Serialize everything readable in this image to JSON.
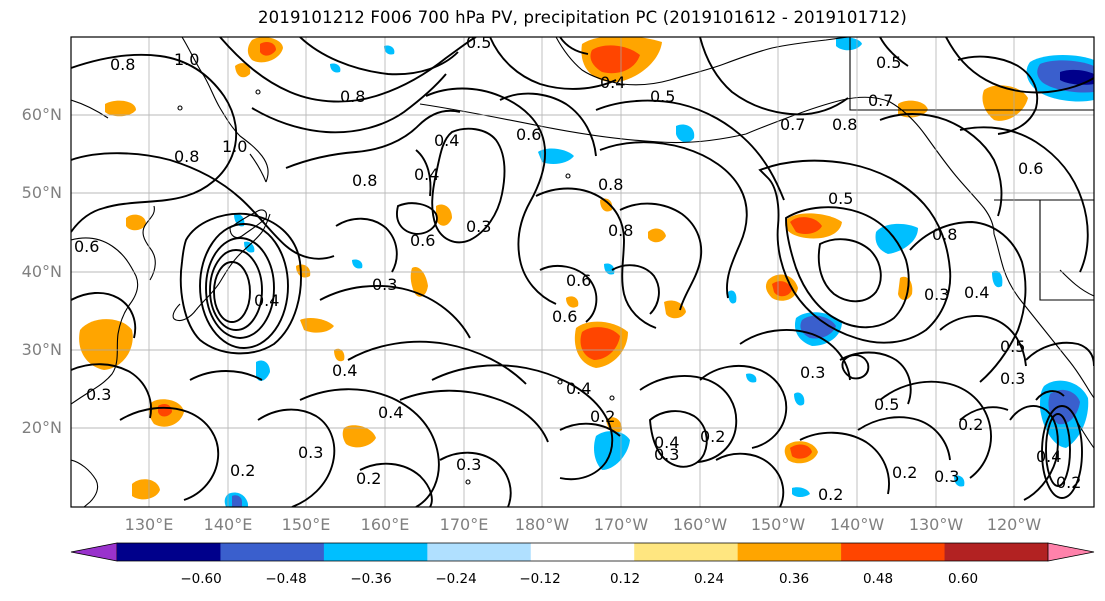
{
  "title": "2019101212 F006 700 hPa PV, precipitation PC (2019101612 - 2019101712)",
  "lat_labels": [
    "60°N",
    "50°N",
    "40°N",
    "30°N",
    "20°N"
  ],
  "lon_labels": [
    "130°E",
    "140°E",
    "150°E",
    "160°E",
    "170°E",
    "180°W",
    "170°W",
    "160°W",
    "150°W",
    "140°W",
    "130°W",
    "120°W"
  ],
  "colorbar": {
    "tick_labels": [
      "−0.60",
      "−0.48",
      "−0.36",
      "−0.24",
      "−0.12",
      "0.12",
      "0.24",
      "0.36",
      "0.48",
      "0.60"
    ],
    "colors": [
      "#9932cc",
      "#00008b",
      "#3a5fcd",
      "#00bfff",
      "#b0e0ff",
      "#ffffff",
      "#ffe680",
      "#ffa500",
      "#ff4500",
      "#b22222",
      "#ff82ab"
    ]
  },
  "contour_labels": [
    "0.8",
    "1.0",
    "0.5",
    "0.8",
    "0.4",
    "0.5",
    "0.6",
    "0.8",
    "0.8",
    "0.5",
    "0.7",
    "0.7",
    "1.0",
    "0.8",
    "0.4",
    "0.6",
    "0.8",
    "0.3",
    "0.6",
    "0.4",
    "0.8",
    "0.5",
    "0.8",
    "0.6",
    "0.3",
    "0.6",
    "0.6",
    "0.4",
    "0.4",
    "0.3",
    "0.5",
    "0.4",
    "0.2",
    "0.3",
    "0.4",
    "0.5",
    "0.2",
    "0.3",
    "0.4",
    "0.3",
    "0.2",
    "0.3",
    "0.2",
    "0.2",
    "0.2",
    "0.3",
    "0.2",
    "0.3",
    "0.2",
    "0.4",
    "0.4",
    "0.3"
  ]
}
